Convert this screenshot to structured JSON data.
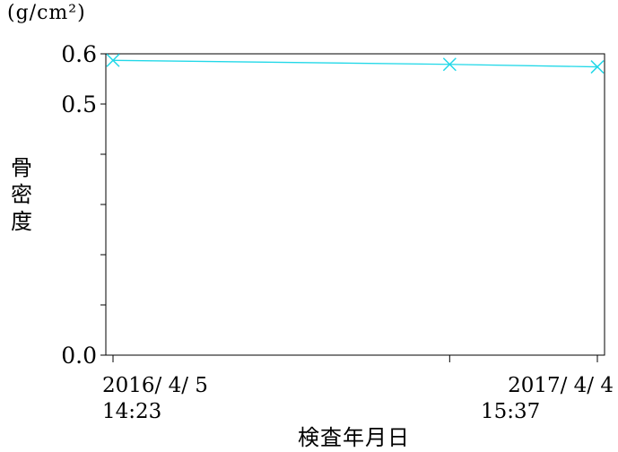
{
  "chart_data": {
    "type": "line",
    "unit_label": "(g/cm²)",
    "ylabel_chars": [
      "骨",
      "密",
      "度"
    ],
    "xlabel": "検査年月日",
    "ylim": [
      0.0,
      0.6
    ],
    "y_ticks": [
      0.0,
      0.5,
      0.6
    ],
    "y_tick_labels": [
      "0.0",
      "0.5",
      "0.6"
    ],
    "y_minor_step": 0.1,
    "x_tick_labels": [
      {
        "date": "2016/ 4/ 5",
        "time": "14:23"
      },
      {
        "date": "2017/ 4/ 4",
        "time": "15:37"
      }
    ],
    "series": [
      {
        "color": "#22d8e8",
        "marker": "x",
        "points": [
          {
            "x": "2016-04-05",
            "y": 0.587
          },
          {
            "x": "2016-12-14",
            "y": 0.579
          },
          {
            "x": "2017-04-04",
            "y": 0.574
          }
        ]
      }
    ],
    "x_tick_marks": [
      "2016-04-05",
      "2016-12-14",
      "2017-04-04"
    ],
    "grid": false
  }
}
